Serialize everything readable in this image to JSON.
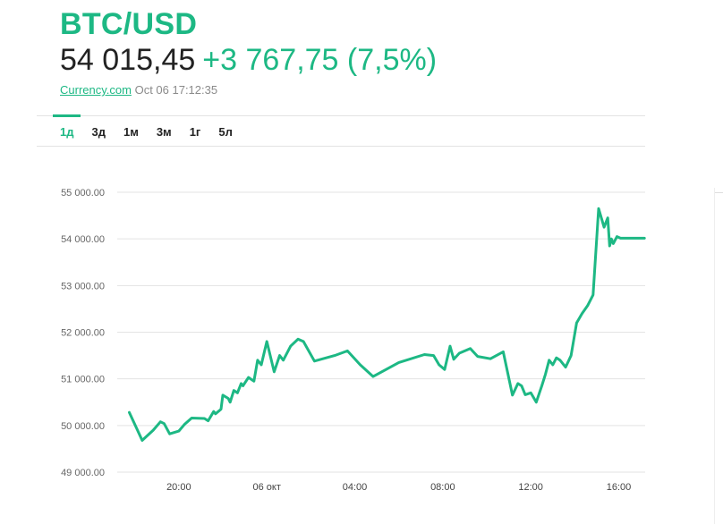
{
  "header": {
    "symbol": "BTC/USD",
    "price": "54 015,45",
    "change": "+3 767,75 (7,5%)",
    "source_link": "Currency.com",
    "timestamp": "Oct 06 17:12:35"
  },
  "tabs": [
    {
      "label": "1д",
      "active": true
    },
    {
      "label": "3д",
      "active": false
    },
    {
      "label": "1м",
      "active": false
    },
    {
      "label": "3м",
      "active": false
    },
    {
      "label": "1г",
      "active": false
    },
    {
      "label": "5л",
      "active": false
    }
  ],
  "colors": {
    "accent": "#1db884",
    "line": "#1db884",
    "grid": "#e3e3e3",
    "text": "#222222"
  },
  "chart_data": {
    "type": "line",
    "title": "",
    "xlabel": "",
    "ylabel": "",
    "grid": true,
    "y_tick_labels": [
      "49 000.00",
      "50 000.00",
      "51 000.00",
      "52 000.00",
      "53 000.00",
      "54 000.00",
      "55 000.00"
    ],
    "y_ticks": [
      49000,
      50000,
      51000,
      52000,
      53000,
      54000,
      55000
    ],
    "ylim": [
      49000,
      55000
    ],
    "x_tick_labels": [
      "20:00",
      "06 окт",
      "04:00",
      "08:00",
      "12:00",
      "16:00"
    ],
    "x_ticks": [
      "2021-10-05T20:00",
      "2021-10-06T00:00",
      "2021-10-06T04:00",
      "2021-10-06T08:00",
      "2021-10-06T12:00",
      "2021-10-06T16:00"
    ],
    "xlim": [
      "2021-10-05T17:12",
      "2021-10-06T17:12"
    ],
    "series": [
      {
        "x": [
          "2021-10-05T17:45",
          "2021-10-05T18:05",
          "2021-10-05T18:20",
          "2021-10-05T18:50",
          "2021-10-05T19:10",
          "2021-10-05T19:20",
          "2021-10-05T19:35",
          "2021-10-05T20:00",
          "2021-10-05T20:15",
          "2021-10-05T20:35",
          "2021-10-05T21:10",
          "2021-10-05T21:20",
          "2021-10-05T21:35",
          "2021-10-05T21:40",
          "2021-10-05T21:55",
          "2021-10-05T22:00",
          "2021-10-05T22:15",
          "2021-10-05T22:20",
          "2021-10-05T22:30",
          "2021-10-05T22:40",
          "2021-10-05T22:50",
          "2021-10-05T22:55",
          "2021-10-05T23:10",
          "2021-10-05T23:25",
          "2021-10-05T23:35",
          "2021-10-05T23:45",
          "2021-10-06T00:00",
          "2021-10-06T00:20",
          "2021-10-06T00:35",
          "2021-10-06T00:45",
          "2021-10-06T01:05",
          "2021-10-06T01:25",
          "2021-10-06T01:40",
          "2021-10-06T02:10",
          "2021-10-06T03:05",
          "2021-10-06T03:40",
          "2021-10-06T04:15",
          "2021-10-06T04:50",
          "2021-10-06T06:00",
          "2021-10-06T07:10",
          "2021-10-06T07:35",
          "2021-10-06T07:50",
          "2021-10-06T08:05",
          "2021-10-06T08:20",
          "2021-10-06T08:30",
          "2021-10-06T08:45",
          "2021-10-06T09:15",
          "2021-10-06T09:35",
          "2021-10-06T10:10",
          "2021-10-06T10:45",
          "2021-10-06T11:10",
          "2021-10-06T11:25",
          "2021-10-06T11:35",
          "2021-10-06T11:45",
          "2021-10-06T12:00",
          "2021-10-06T12:15",
          "2021-10-06T12:30",
          "2021-10-06T12:40",
          "2021-10-06T12:50",
          "2021-10-06T13:00",
          "2021-10-06T13:10",
          "2021-10-06T13:20",
          "2021-10-06T13:35",
          "2021-10-06T13:50",
          "2021-10-06T14:05",
          "2021-10-06T14:20",
          "2021-10-06T14:35",
          "2021-10-06T14:50",
          "2021-10-06T15:05",
          "2021-10-06T15:20",
          "2021-10-06T15:30",
          "2021-10-06T15:35",
          "2021-10-06T15:40",
          "2021-10-06T15:45",
          "2021-10-06T15:55",
          "2021-10-06T16:05",
          "2021-10-06T16:15",
          "2021-10-06T16:20",
          "2021-10-06T16:25",
          "2021-10-06T16:30",
          "2021-10-06T16:35",
          "2021-10-06T16:45",
          "2021-10-06T16:55",
          "2021-10-06T17:00",
          "2021-10-06T17:05",
          "2021-10-06T17:10"
        ],
        "values": [
          50280,
          49940,
          49680,
          49900,
          50080,
          50040,
          49820,
          49880,
          50020,
          50160,
          50150,
          50100,
          50300,
          50250,
          50350,
          50650,
          50580,
          50500,
          50750,
          50700,
          50900,
          50850,
          51030,
          50950,
          51400,
          51300,
          51800,
          51150,
          51500,
          51400,
          51700,
          51850,
          51800,
          51380,
          51500,
          51600,
          51300,
          51050,
          51350,
          51520,
          51500,
          51300,
          51200,
          51700,
          51420,
          51550,
          51650,
          51480,
          51430,
          51580,
          50650,
          50900,
          50850,
          50660,
          50700,
          50500,
          50850,
          51100,
          51400,
          51300,
          51450,
          51400,
          51250,
          51500,
          52200,
          52400,
          52570,
          52800,
          54650,
          54250,
          54450,
          53850,
          54000,
          53900,
          54050,
          54015,
          54015,
          54015,
          54015,
          54015,
          54015,
          54015,
          54015,
          54015,
          54015,
          54015
        ]
      }
    ]
  }
}
